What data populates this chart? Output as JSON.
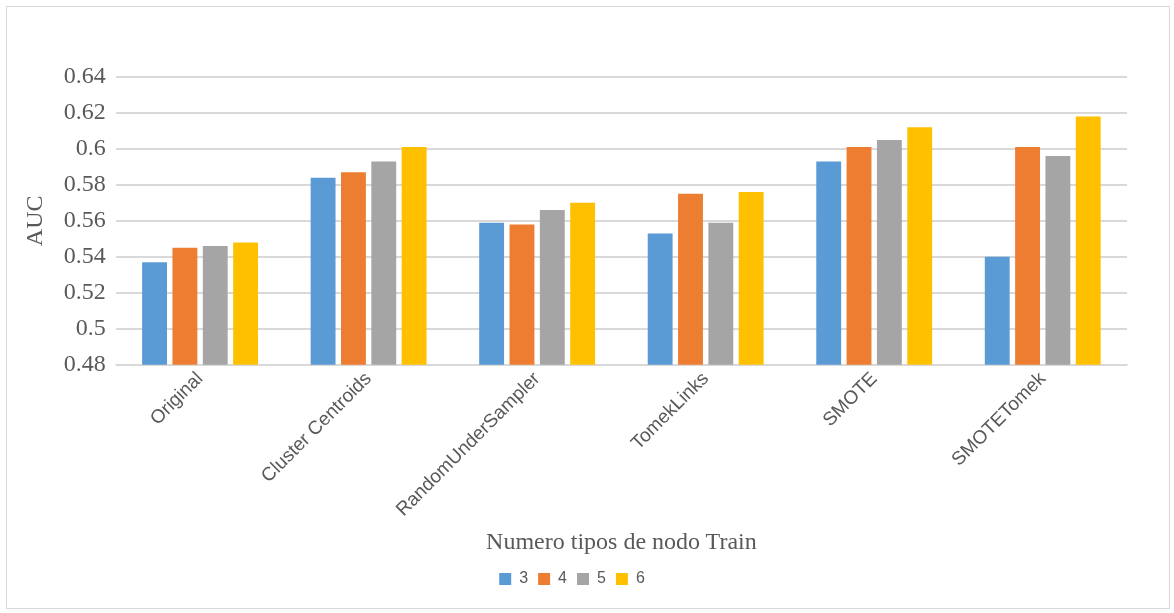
{
  "chart_data": {
    "type": "bar",
    "xlabel": "Numero tipos de nodo Train",
    "ylabel": "AUC",
    "categories": [
      "Original",
      "Cluster Centroids",
      "RandomUnderSampler",
      "TomekLinks",
      "SMOTE",
      "SMOTETomek"
    ],
    "series": [
      {
        "name": "3",
        "color": "#5b9bd5",
        "values": [
          0.537,
          0.584,
          0.559,
          0.553,
          0.593,
          0.54
        ]
      },
      {
        "name": "4",
        "color": "#ed7d31",
        "values": [
          0.545,
          0.587,
          0.558,
          0.575,
          0.601,
          0.601
        ]
      },
      {
        "name": "5",
        "color": "#a5a5a5",
        "values": [
          0.546,
          0.593,
          0.566,
          0.559,
          0.605,
          0.596
        ]
      },
      {
        "name": "6",
        "color": "#ffc000",
        "values": [
          0.548,
          0.601,
          0.57,
          0.576,
          0.612,
          0.618
        ]
      }
    ],
    "ylim": [
      0.48,
      0.64
    ],
    "yticks": [
      0.48,
      0.5,
      0.52,
      0.54,
      0.56,
      0.58,
      0.6,
      0.62,
      0.64
    ],
    "grid": "y",
    "legend": "bottom"
  }
}
